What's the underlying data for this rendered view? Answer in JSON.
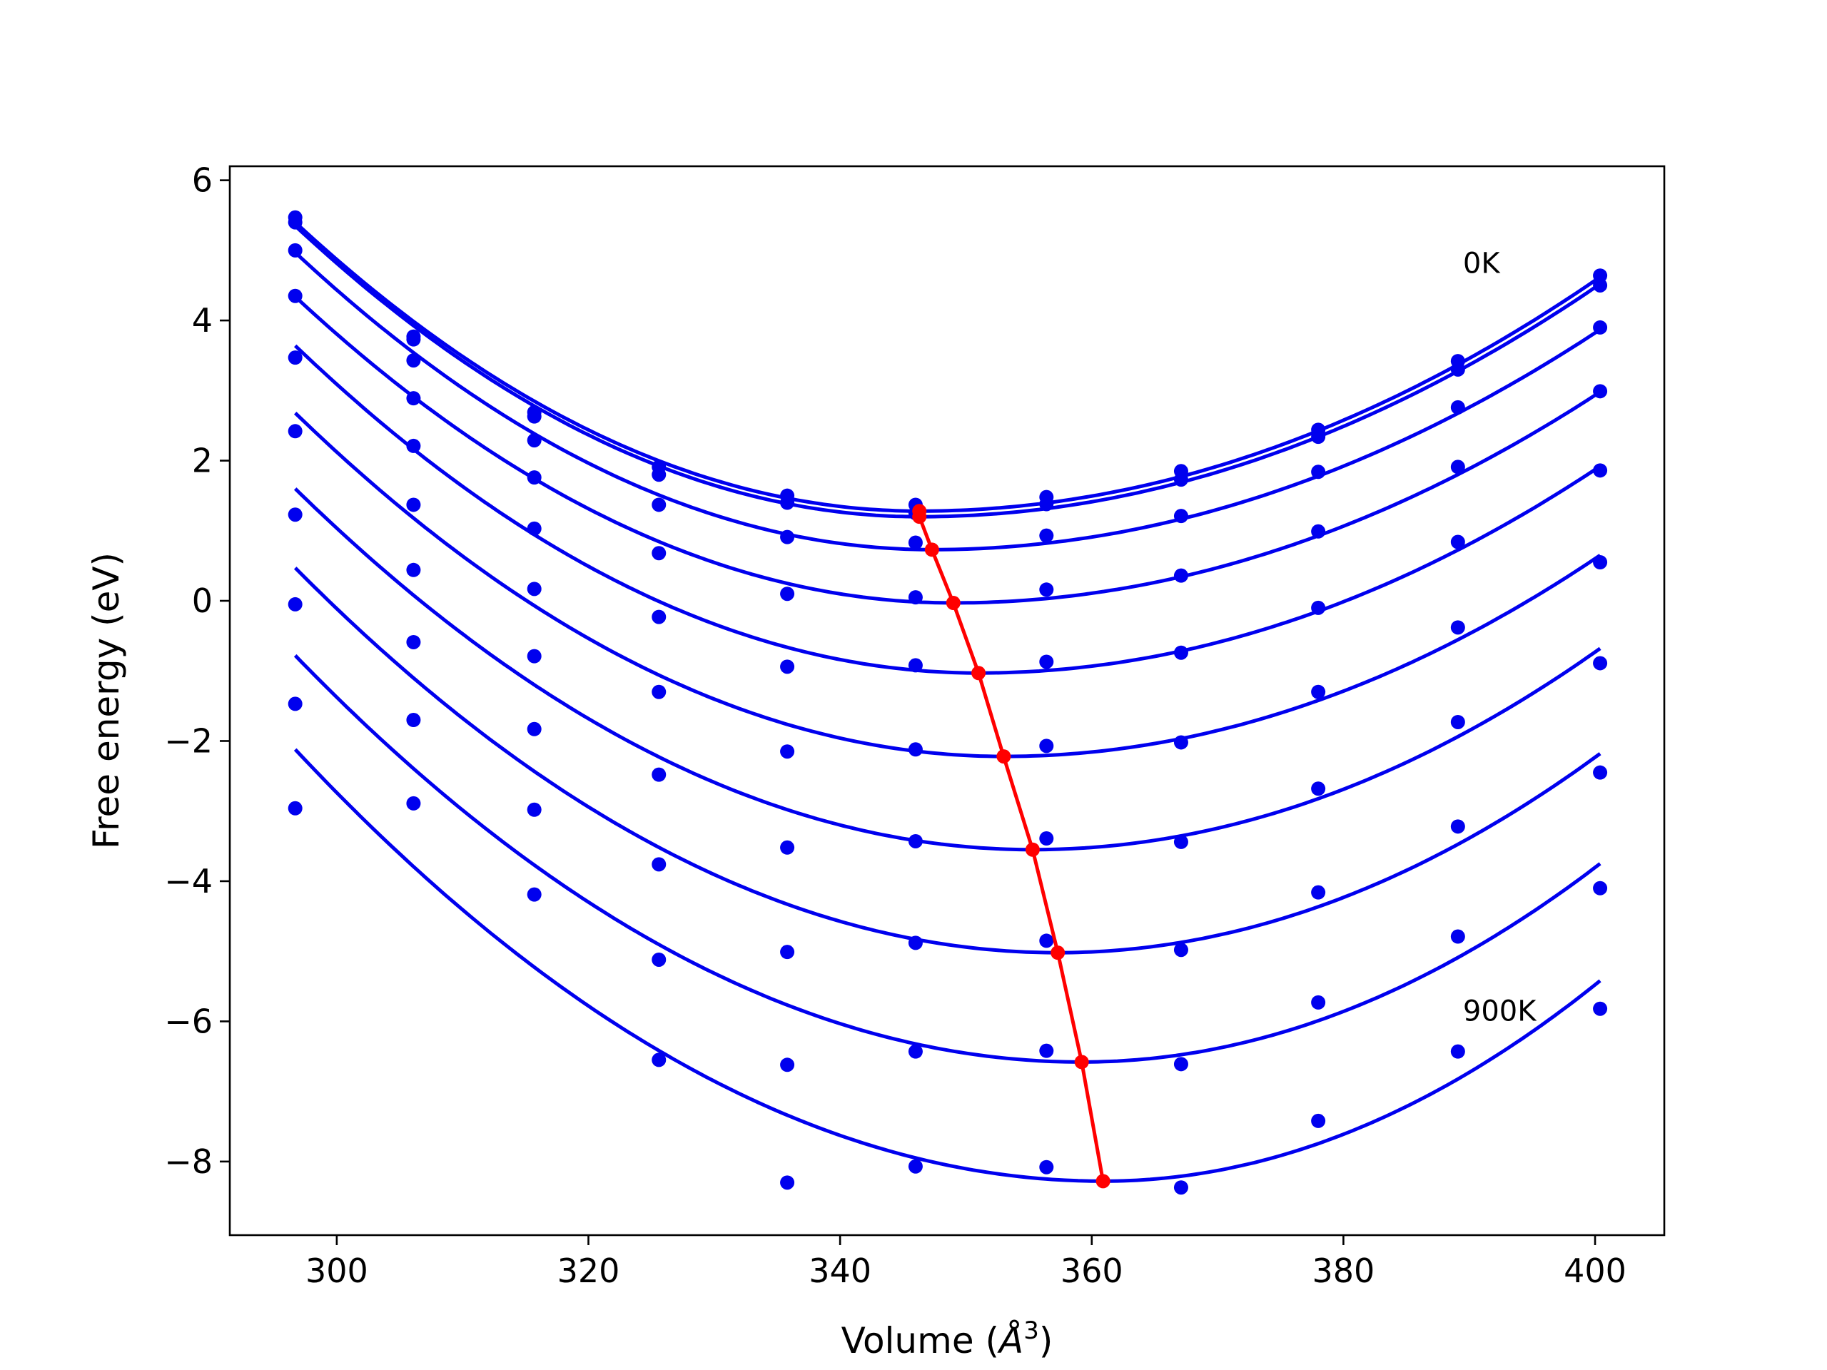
{
  "chart_data": {
    "type": "scatter",
    "title": "",
    "xlabel": "Volume (",
    "xlabel_unit": "Å",
    "xlabel_exp": "3",
    "xlabel_close": ")",
    "ylabel": "Free energy (eV)",
    "xlim": [
      291.5,
      405.5
    ],
    "ylim": [
      -9.05,
      6.2
    ],
    "xticks": [
      300,
      320,
      340,
      360,
      380,
      400
    ],
    "yticks": [
      -8,
      -6,
      -4,
      -2,
      0,
      2,
      4,
      6
    ],
    "xtick_labels": [
      "300",
      "320",
      "340",
      "360",
      "380",
      "400"
    ],
    "ytick_labels": [
      "−8",
      "−6",
      "−4",
      "−2",
      "0",
      "2",
      "4",
      "6"
    ],
    "grid": false,
    "annotations": [
      {
        "text": "0K",
        "x": 389.5,
        "y": 4.82
      },
      {
        "text": "900K",
        "x": 389.5,
        "y": -5.85
      }
    ],
    "colors": {
      "points": "#0000ee",
      "fits": "#0000ee",
      "minima": "#ff0000",
      "axes": "#000000"
    },
    "volumes": [
      296.7,
      306.1,
      315.7,
      325.6,
      335.8,
      346.0,
      356.4,
      367.1,
      378.0,
      389.1,
      400.4
    ],
    "fit_x_range": [
      296.7,
      400.4
    ],
    "series": [
      {
        "fit": {
          "vmin": 346.3,
          "fmin": 1.28,
          "left": 5.4,
          "right": 4.62
        },
        "points": [
          5.47,
          3.77,
          2.69,
          1.91,
          1.5,
          1.37,
          1.48,
          1.85,
          2.44,
          3.42,
          4.64
        ]
      },
      {
        "fit": {
          "vmin": 346.3,
          "fmin": 1.2,
          "left": 5.35,
          "right": 4.52
        },
        "points": [
          5.4,
          3.73,
          2.63,
          1.8,
          1.4,
          1.25,
          1.38,
          1.73,
          2.34,
          3.3,
          4.5
        ]
      },
      {
        "fit": {
          "vmin": 347.3,
          "fmin": 0.73,
          "left": 4.97,
          "right": 3.87
        },
        "points": [
          5.0,
          3.43,
          2.29,
          1.37,
          0.91,
          0.83,
          0.93,
          1.21,
          1.84,
          2.76,
          3.9
        ]
      },
      {
        "fit": {
          "vmin": 349.0,
          "fmin": -0.03,
          "left": 4.34,
          "right": 2.98
        },
        "points": [
          4.35,
          2.89,
          1.76,
          0.68,
          0.1,
          0.05,
          0.16,
          0.36,
          0.99,
          1.91,
          2.99
        ]
      },
      {
        "fit": {
          "vmin": 351.0,
          "fmin": -1.03,
          "left": 3.64,
          "right": 1.92
        },
        "points": [
          3.47,
          2.21,
          1.03,
          -0.23,
          -0.94,
          -0.92,
          -0.87,
          -0.74,
          -0.1,
          0.84,
          1.86
        ]
      },
      {
        "fit": {
          "vmin": 353.0,
          "fmin": -2.22,
          "left": 2.68,
          "right": 0.65
        },
        "points": [
          2.42,
          1.37,
          0.17,
          -1.3,
          -2.15,
          -2.12,
          -2.07,
          -2.02,
          -1.3,
          -0.38,
          0.55
        ]
      },
      {
        "fit": {
          "vmin": 355.3,
          "fmin": -3.55,
          "left": 1.6,
          "right": -0.68
        },
        "points": [
          1.23,
          0.44,
          -0.79,
          -2.48,
          -3.52,
          -3.43,
          -3.39,
          -3.44,
          -2.68,
          -1.73,
          -0.89
        ]
      },
      {
        "fit": {
          "vmin": 357.3,
          "fmin": -5.02,
          "left": 0.47,
          "right": -2.18
        },
        "points": [
          -0.05,
          -0.59,
          -1.83,
          -3.76,
          -5.01,
          -4.88,
          -4.85,
          -4.98,
          -4.16,
          -3.22,
          -2.45
        ]
      },
      {
        "fit": {
          "vmin": 359.2,
          "fmin": -6.58,
          "left": -0.78,
          "right": -3.75
        },
        "points": [
          -1.47,
          -1.7,
          -2.98,
          -5.12,
          -6.62,
          -6.43,
          -6.42,
          -6.61,
          -5.73,
          -4.79,
          -4.1
        ]
      },
      {
        "fit": {
          "vmin": 360.9,
          "fmin": -8.28,
          "left": -2.12,
          "right": -5.42
        },
        "points": [
          -2.96,
          -2.89,
          -4.19,
          -6.55,
          -8.3,
          -8.07,
          -8.08,
          -8.37,
          -7.42,
          -6.43,
          -5.82
        ]
      }
    ],
    "minima_curve": {
      "x": [
        346.3,
        346.3,
        347.3,
        349.0,
        351.0,
        353.0,
        355.3,
        357.3,
        359.2,
        360.9
      ],
      "y": [
        1.28,
        1.2,
        0.73,
        -0.03,
        -1.03,
        -2.22,
        -3.55,
        -5.02,
        -6.58,
        -8.28
      ]
    }
  }
}
